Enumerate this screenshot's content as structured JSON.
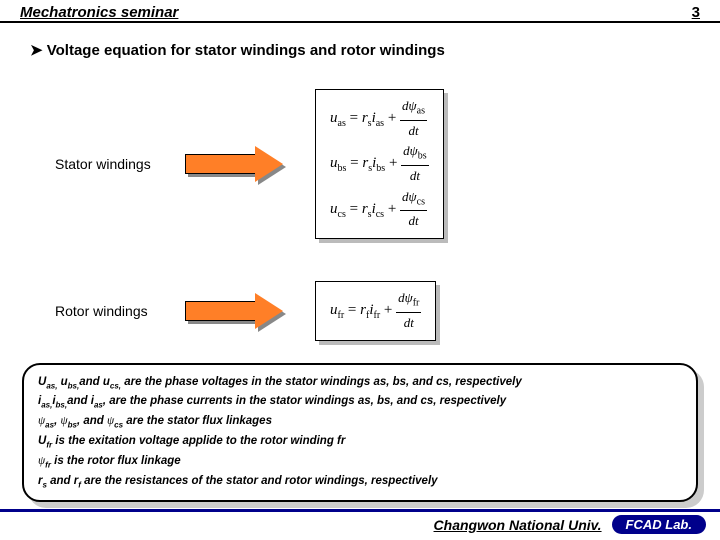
{
  "header": {
    "title": "Mechatronics seminar",
    "page": "3"
  },
  "heading": "Voltage equation for stator windings and rotor windings",
  "stator": {
    "label": "Stator windings",
    "eq": [
      {
        "u": "u",
        "usub": "as",
        "r": "r",
        "rsub": "s",
        "i": "i",
        "isub": "as",
        "psi": "ψ",
        "psisub": "as"
      },
      {
        "u": "u",
        "usub": "bs",
        "r": "r",
        "rsub": "s",
        "i": "i",
        "isub": "bs",
        "psi": "ψ",
        "psisub": "bs"
      },
      {
        "u": "u",
        "usub": "cs",
        "r": "r",
        "rsub": "s",
        "i": "i",
        "isub": "cs",
        "psi": "ψ",
        "psisub": "cs"
      }
    ]
  },
  "rotor": {
    "label": "Rotor windings",
    "eq": {
      "u": "u",
      "usub": "fr",
      "r": "r",
      "rsub": "f",
      "i": "i",
      "isub": "fr",
      "psi": "ψ",
      "psisub": "fr"
    }
  },
  "notes": {
    "l1a": "U",
    "l1as": "as,",
    "l1b": " u",
    "l1bs": "bs,",
    "l1c": "and  u",
    "l1cs": "cs,",
    "l1d": " are the phase voltages in the stator windings as, bs, and cs, respectively",
    "l2a": "i",
    "l2as": "as,",
    "l2b": "i",
    "l2bs": "bs,",
    "l2c": "and i",
    "l2cs": "as",
    "l2d": ", are the phase currents in the stator windings as, bs, and cs, respectively",
    "l3psi": "ψ",
    "l3a": "as",
    "l3b": "bs",
    "l3c": "cs",
    "l3and": " and ",
    "l3d": " are the stator flux linkages",
    "l4a": "U",
    "l4as": "fr",
    "l4b": " is the exitation voltage applide to the rotor winding fr",
    "l5psi": "ψ",
    "l5a": "fr",
    "l5b": " is the rotor flux linkage",
    "l6a": "r",
    "l6as": "s",
    "l6b": " and r",
    "l6bs": "f",
    "l6c": " are the resistances of the stator and rotor windings, respectively"
  },
  "footer": {
    "univ": "Changwon National Univ.",
    "lab": "FCAD Lab."
  },
  "colors": {
    "arrow_fill": "#ff7f27",
    "footer_blue": "#00008b"
  }
}
